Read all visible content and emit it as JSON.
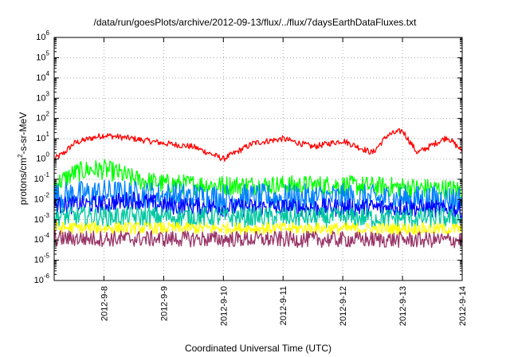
{
  "chart_data": {
    "type": "line",
    "title": "/data/run/goesPlots/archive/2012-09-13/flux/../flux/7daysEarthDataFluxes.txt",
    "xlabel": "Coordinated Universal Time (UTC)",
    "ylabel": {
      "prefix": "protons/cm",
      "exponent": "2",
      "suffix": "-s-sr-MeV"
    },
    "y_scale": "log",
    "ylim_exponents": [
      -6,
      6
    ],
    "y_tick_labels": [
      {
        "base": "10",
        "exp": "-6"
      },
      {
        "base": "10",
        "exp": "-5"
      },
      {
        "base": "10",
        "exp": "-4"
      },
      {
        "base": "10",
        "exp": "-3"
      },
      {
        "base": "10",
        "exp": "-2"
      },
      {
        "base": "10",
        "exp": "-1"
      },
      {
        "base": "10",
        "exp": "0"
      },
      {
        "base": "10",
        "exp": "1"
      },
      {
        "base": "10",
        "exp": "2"
      },
      {
        "base": "10",
        "exp": "3"
      },
      {
        "base": "10",
        "exp": "4"
      },
      {
        "base": "10",
        "exp": "5"
      },
      {
        "base": "10",
        "exp": "6"
      }
    ],
    "xlim": [
      "2012-09-07 04:00",
      "2012-09-14 00:00"
    ],
    "x_ticks": [
      "2012-9-8",
      "2012-9-9",
      "2012-9-10",
      "2012-9-11",
      "2012-9-12",
      "2012-9-13",
      "2012-9-14"
    ],
    "grid": true,
    "series": [
      {
        "color": "#ff0000",
        "x": [
          "2012-09-07 04:00",
          "2012-09-07 08:00",
          "2012-09-07 12:00",
          "2012-09-07 18:00",
          "2012-09-08 00:00",
          "2012-09-08 12:00",
          "2012-09-09 00:00",
          "2012-09-09 12:00",
          "2012-09-10 00:00",
          "2012-09-10 12:00",
          "2012-09-11 00:00",
          "2012-09-11 12:00",
          "2012-09-12 00:00",
          "2012-09-12 12:00",
          "2012-09-12 18:00",
          "2012-09-13 00:00",
          "2012-09-13 06:00",
          "2012-09-13 18:00",
          "2012-09-14 00:00"
        ],
        "y": [
          1.0,
          2.0,
          6.0,
          10.0,
          15.0,
          10.0,
          6.0,
          4.0,
          1.0,
          6.0,
          10.0,
          4.0,
          8.0,
          2.0,
          15.0,
          25.0,
          2.0,
          12.0,
          2.5
        ],
        "noise": 0.15
      },
      {
        "color": "#00ff00",
        "x": [
          "2012-09-07 04:00",
          "2012-09-07 12:00",
          "2012-09-07 18:00",
          "2012-09-08 00:00",
          "2012-09-08 06:00",
          "2012-09-08 12:00",
          "2012-09-09 00:00",
          "2012-09-10 00:00",
          "2012-09-11 00:00",
          "2012-09-12 00:00",
          "2012-09-13 00:00",
          "2012-09-14 00:00"
        ],
        "y": [
          0.05,
          0.2,
          0.3,
          0.3,
          0.2,
          0.1,
          0.06,
          0.05,
          0.05,
          0.05,
          0.04,
          0.03
        ],
        "noise": 0.5
      },
      {
        "color": "#0080ff",
        "x": [
          "2012-09-07 04:00",
          "2012-09-08 00:00",
          "2012-09-09 00:00",
          "2012-09-10 00:00",
          "2012-09-11 00:00",
          "2012-09-12 00:00",
          "2012-09-13 00:00",
          "2012-09-14 00:00"
        ],
        "y": [
          0.015,
          0.02,
          0.015,
          0.012,
          0.012,
          0.012,
          0.01,
          0.01
        ],
        "noise": 0.7
      },
      {
        "color": "#0000ff",
        "x": [
          "2012-09-07 04:00",
          "2012-09-08 00:00",
          "2012-09-08 12:00",
          "2012-09-09 00:00",
          "2012-09-10 00:00",
          "2012-09-11 00:00",
          "2012-09-12 00:00",
          "2012-09-13 00:00",
          "2012-09-14 00:00"
        ],
        "y": [
          0.005,
          0.006,
          0.01,
          0.005,
          0.004,
          0.004,
          0.004,
          0.004,
          0.003
        ],
        "noise": 0.45
      },
      {
        "color": "#00c8a0",
        "x": [
          "2012-09-07 04:00",
          "2012-09-14 00:00"
        ],
        "y": [
          0.0015,
          0.0012
        ],
        "noise": 0.5
      },
      {
        "color": "#ffff00",
        "x": [
          "2012-09-07 04:00",
          "2012-09-14 00:00"
        ],
        "y": [
          0.0004,
          0.00035
        ],
        "noise": 0.3
      },
      {
        "color": "#993366",
        "x": [
          "2012-09-07 04:00",
          "2012-09-14 00:00"
        ],
        "y": [
          0.00012,
          0.0001
        ],
        "noise": 0.4
      }
    ]
  }
}
